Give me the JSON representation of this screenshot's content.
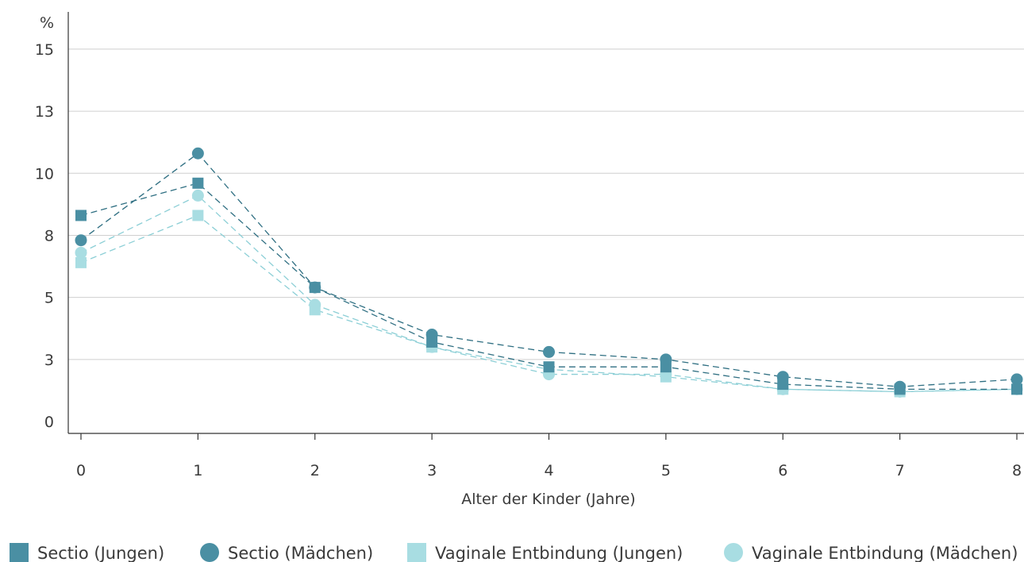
{
  "chart_data": {
    "type": "line",
    "title": "",
    "xlabel": "Alter der Kinder (Jahre)",
    "ylabel": "%",
    "x": [
      0,
      1,
      2,
      3,
      4,
      5,
      6,
      7,
      8
    ],
    "x_tick_labels": [
      "0",
      "1",
      "2",
      "3",
      "4",
      "5",
      "6",
      "7",
      "8"
    ],
    "y_ticks": [
      0,
      2.5,
      5,
      7.5,
      10,
      12.5,
      15
    ],
    "y_tick_labels": [
      "0",
      "3",
      "5",
      "8",
      "10",
      "13",
      "15"
    ],
    "ylim": [
      0,
      16.5
    ],
    "grid": true,
    "legend_position": "bottom",
    "series": [
      {
        "name": "Sectio (Jungen)",
        "marker": "square",
        "color": "#4a8fa3",
        "line_color": "#2f6f82",
        "values": [
          8.3,
          9.6,
          5.4,
          3.2,
          2.2,
          2.2,
          1.5,
          1.3,
          1.3
        ]
      },
      {
        "name": "Sectio (Mädchen)",
        "marker": "circle",
        "color": "#4a8fa3",
        "line_color": "#2f6f82",
        "values": [
          7.3,
          10.8,
          5.4,
          3.5,
          2.8,
          2.5,
          1.8,
          1.4,
          1.7
        ]
      },
      {
        "name": "Vaginale Entbindung (Jungen)",
        "marker": "square",
        "color": "#a8dde2",
        "line_color": "#8ccfd6",
        "values": [
          6.4,
          8.3,
          4.5,
          3.0,
          2.1,
          1.8,
          1.3,
          1.2,
          1.3
        ]
      },
      {
        "name": "Vaginale Entbindung (Mädchen)",
        "marker": "circle",
        "color": "#a8dde2",
        "line_color": "#8ccfd6",
        "values": [
          6.8,
          9.1,
          4.7,
          3.0,
          1.9,
          1.9,
          1.3,
          1.2,
          1.3
        ]
      }
    ]
  }
}
